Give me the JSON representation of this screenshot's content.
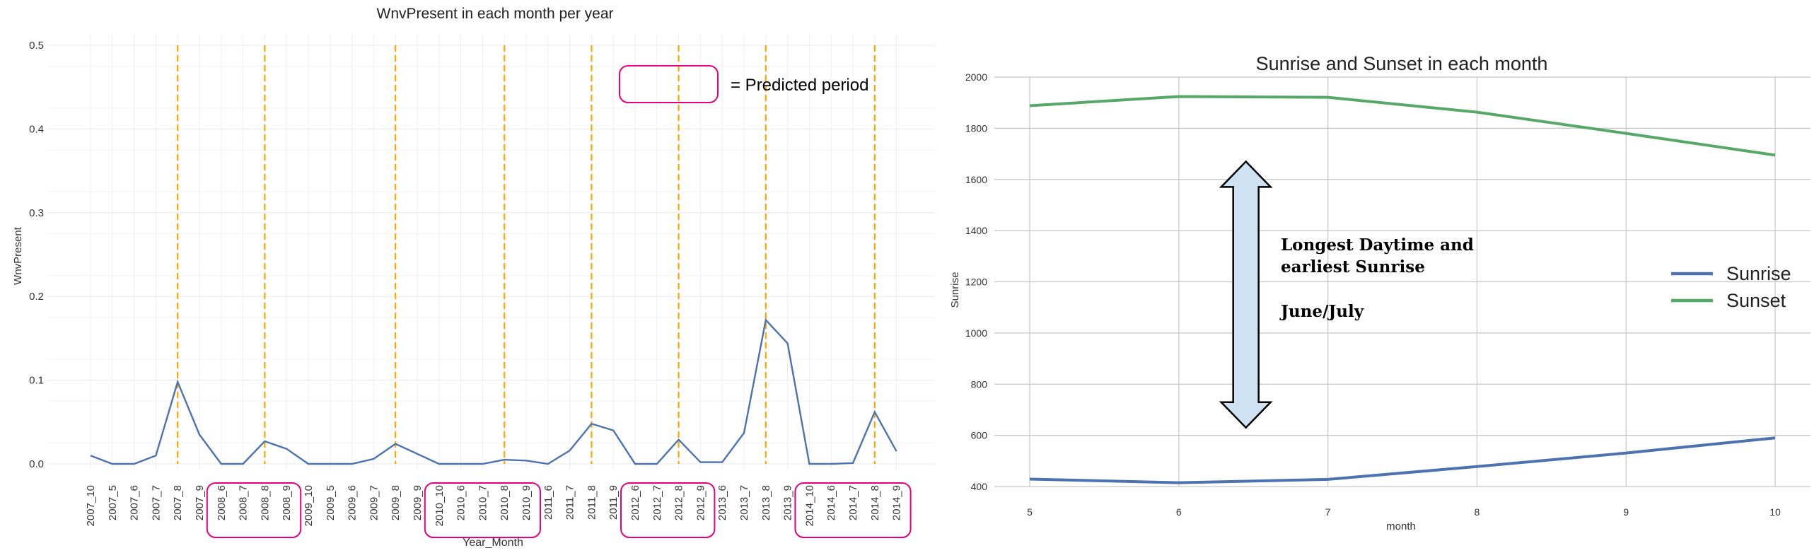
{
  "chart_data": [
    {
      "type": "line",
      "title": "WnvPresent in each month per year",
      "xlabel": "Year_Month",
      "ylabel": "WnvPresent",
      "ylim": [
        0,
        0.5
      ],
      "yticks": [
        "0.0",
        "0.1",
        "0.2",
        "0.3",
        "0.4",
        "0.5"
      ],
      "grid": true,
      "categories": [
        "2007_10",
        "2007_5",
        "2007_6",
        "2007_7",
        "2007_8",
        "2007_9",
        "2008_6",
        "2008_7",
        "2008_8",
        "2008_9",
        "2009_10",
        "2009_5",
        "2009_6",
        "2009_7",
        "2009_8",
        "2009_9",
        "2010_10",
        "2010_6",
        "2010_7",
        "2010_8",
        "2010_9",
        "2011_6",
        "2011_7",
        "2011_8",
        "2011_9",
        "2012_6",
        "2012_7",
        "2012_8",
        "2012_9",
        "2013_6",
        "2013_7",
        "2013_8",
        "2013_9",
        "2014_10",
        "2014_6",
        "2014_7",
        "2014_8",
        "2014_9"
      ],
      "series": [
        {
          "color": "#4c72b0",
          "values": [
            0.01,
            0.0,
            0.0,
            0.01,
            0.098,
            0.035,
            0.0,
            0.0,
            0.027,
            0.018,
            0.0,
            0.0,
            0.0,
            0.006,
            0.024,
            0.012,
            0.0,
            0.0,
            0.0,
            0.005,
            0.004,
            0.0,
            0.016,
            0.048,
            0.04,
            0.0,
            0.0,
            0.029,
            0.002,
            0.002,
            0.037,
            0.172,
            0.144,
            0.0,
            0.0,
            0.001,
            0.062,
            0.015
          ]
        }
      ],
      "vlines": {
        "color": "#ffa500",
        "at": [
          "2007_8",
          "2008_8",
          "2009_8",
          "2010_8",
          "2011_8",
          "2012_8",
          "2013_8",
          "2014_8"
        ]
      },
      "highlight_groups": {
        "color": "#e6007e",
        "groups": [
          [
            "2008_6",
            "2008_9"
          ],
          [
            "2010_10",
            "2010_9"
          ],
          [
            "2012_6",
            "2012_9"
          ],
          [
            "2014_10",
            "2014_9"
          ]
        ]
      },
      "legend_label": "= Predicted period"
    },
    {
      "type": "line",
      "title": "Sunrise and Sunset in each month",
      "xlabel": "month",
      "ylabel": "Sunrise",
      "xlim": [
        5,
        10
      ],
      "ylim": [
        400,
        2000
      ],
      "xticks": [
        "5",
        "6",
        "7",
        "8",
        "9",
        "10"
      ],
      "yticks": [
        "400",
        "600",
        "800",
        "1000",
        "1200",
        "1400",
        "1600",
        "1800",
        "2000"
      ],
      "grid": true,
      "legend_position": "right",
      "x": [
        5,
        6,
        7,
        8,
        9,
        10
      ],
      "series": [
        {
          "name": "Sunrise",
          "color": "#4c72b0",
          "values": [
            429,
            415,
            428,
            478,
            531,
            590
          ]
        },
        {
          "name": "Sunset",
          "color": "#55a868",
          "values": [
            1888,
            1924,
            1921,
            1863,
            1780,
            1695
          ]
        }
      ],
      "annotation": {
        "lines": [
          "Longest Daytime and",
          "earliest Sunrise",
          "",
          "June/July"
        ],
        "arrow_fill": "#cfe2f3",
        "arrow_y": [
          1670,
          630
        ],
        "arrow_x": 6.45
      }
    }
  ]
}
